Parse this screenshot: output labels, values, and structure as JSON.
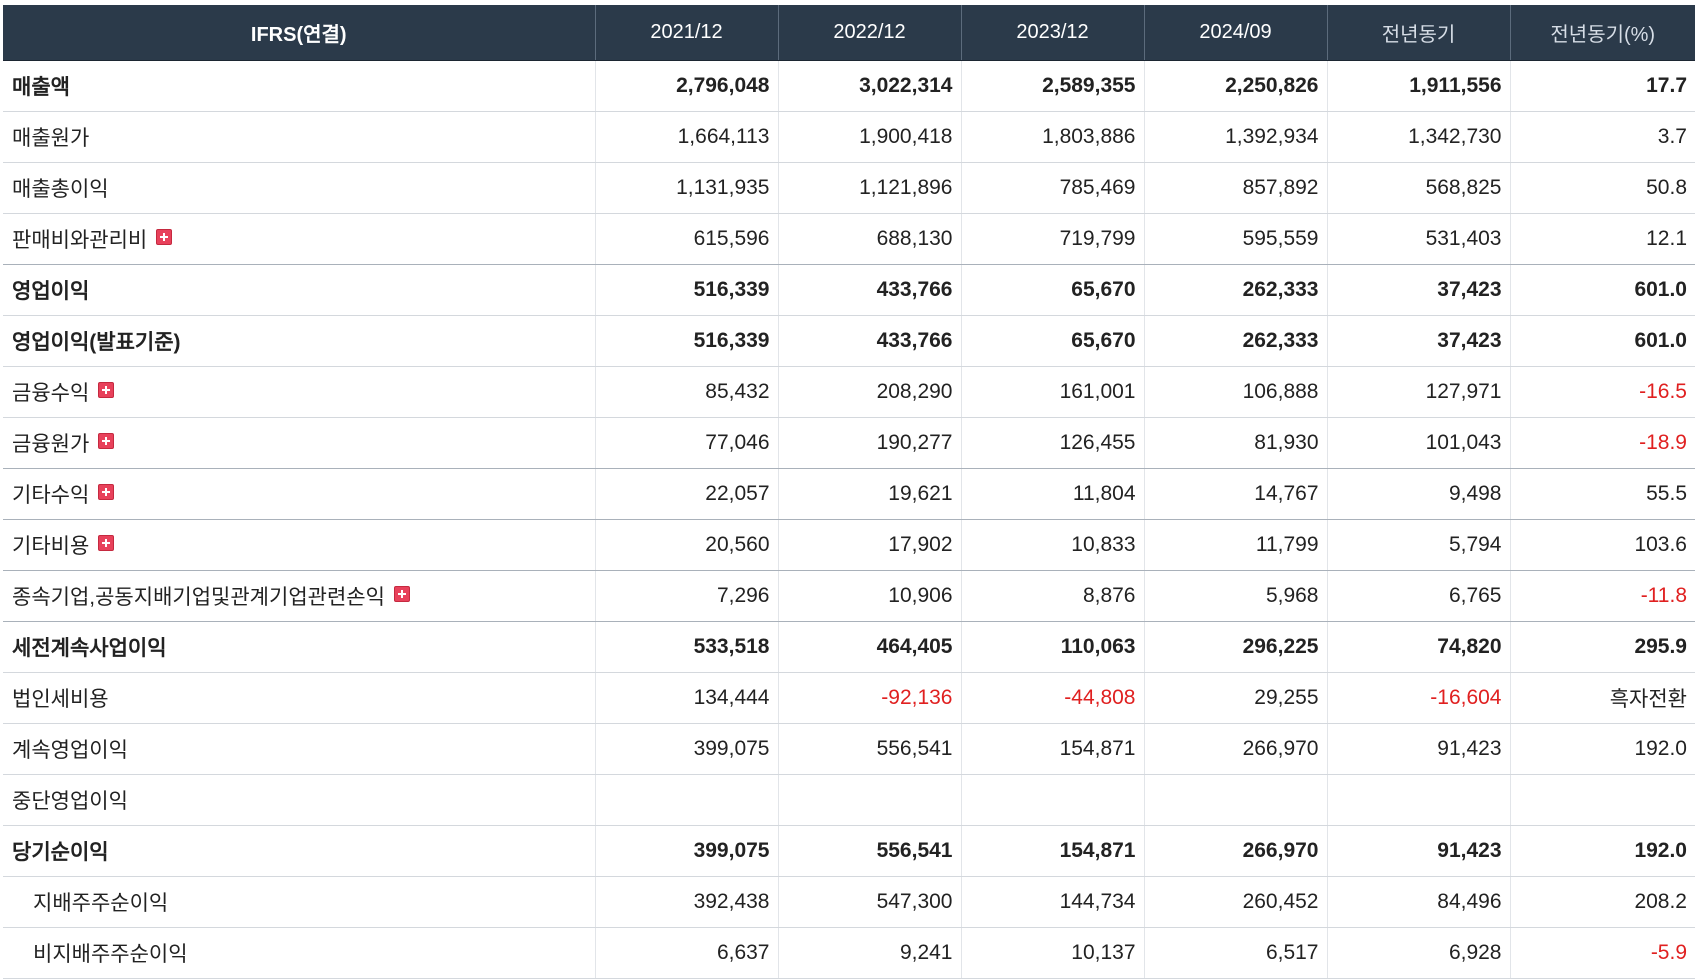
{
  "header": {
    "label": "IFRS(연결)",
    "periods": [
      "2021/12",
      "2022/12",
      "2023/12",
      "2024/09",
      "전년동기",
      "전년동기(%)"
    ]
  },
  "rows": [
    {
      "label": "매출액",
      "values": [
        "2,796,048",
        "3,022,314",
        "2,589,355",
        "2,250,826",
        "1,911,556",
        "17.7"
      ]
    },
    {
      "label": "매출원가",
      "values": [
        "1,664,113",
        "1,900,418",
        "1,803,886",
        "1,392,934",
        "1,342,730",
        "3.7"
      ]
    },
    {
      "label": "매출총이익",
      "values": [
        "1,131,935",
        "1,121,896",
        "785,469",
        "857,892",
        "568,825",
        "50.8"
      ]
    },
    {
      "label": "판매비와관리비",
      "values": [
        "615,596",
        "688,130",
        "719,799",
        "595,559",
        "531,403",
        "12.1"
      ]
    },
    {
      "label": "영업이익",
      "values": [
        "516,339",
        "433,766",
        "65,670",
        "262,333",
        "37,423",
        "601.0"
      ]
    },
    {
      "label": "영업이익(발표기준)",
      "values": [
        "516,339",
        "433,766",
        "65,670",
        "262,333",
        "37,423",
        "601.0"
      ]
    },
    {
      "label": "금융수익",
      "values": [
        "85,432",
        "208,290",
        "161,001",
        "106,888",
        "127,971",
        "-16.5"
      ]
    },
    {
      "label": "금융원가",
      "values": [
        "77,046",
        "190,277",
        "126,455",
        "81,930",
        "101,043",
        "-18.9"
      ]
    },
    {
      "label": "기타수익",
      "values": [
        "22,057",
        "19,621",
        "11,804",
        "14,767",
        "9,498",
        "55.5"
      ]
    },
    {
      "label": "기타비용",
      "values": [
        "20,560",
        "17,902",
        "10,833",
        "11,799",
        "5,794",
        "103.6"
      ]
    },
    {
      "label": "종속기업,공동지배기업및관계기업관련손익",
      "values": [
        "7,296",
        "10,906",
        "8,876",
        "5,968",
        "6,765",
        "-11.8"
      ]
    },
    {
      "label": "세전계속사업이익",
      "values": [
        "533,518",
        "464,405",
        "110,063",
        "296,225",
        "74,820",
        "295.9"
      ]
    },
    {
      "label": "법인세비용",
      "values": [
        "134,444",
        "-92,136",
        "-44,808",
        "29,255",
        "-16,604",
        "흑자전환"
      ]
    },
    {
      "label": "계속영업이익",
      "values": [
        "399,075",
        "556,541",
        "154,871",
        "266,970",
        "91,423",
        "192.0"
      ]
    },
    {
      "label": "중단영업이익",
      "values": [
        "",
        "",
        "",
        "",
        "",
        ""
      ]
    },
    {
      "label": "당기순이익",
      "values": [
        "399,075",
        "556,541",
        "154,871",
        "266,970",
        "91,423",
        "192.0"
      ]
    },
    {
      "label": "지배주주순이익",
      "values": [
        "392,438",
        "547,300",
        "144,734",
        "260,452",
        "84,496",
        "208.2"
      ]
    },
    {
      "label": "비지배주주순이익",
      "values": [
        "6,637",
        "9,241",
        "10,137",
        "6,517",
        "6,928",
        "-5.9"
      ]
    }
  ],
  "colors": {
    "header_bg": "#2b3a4a",
    "negative": "#e02020",
    "expand_icon": "#e8415b"
  },
  "icons": {
    "expand": "plus-icon"
  }
}
